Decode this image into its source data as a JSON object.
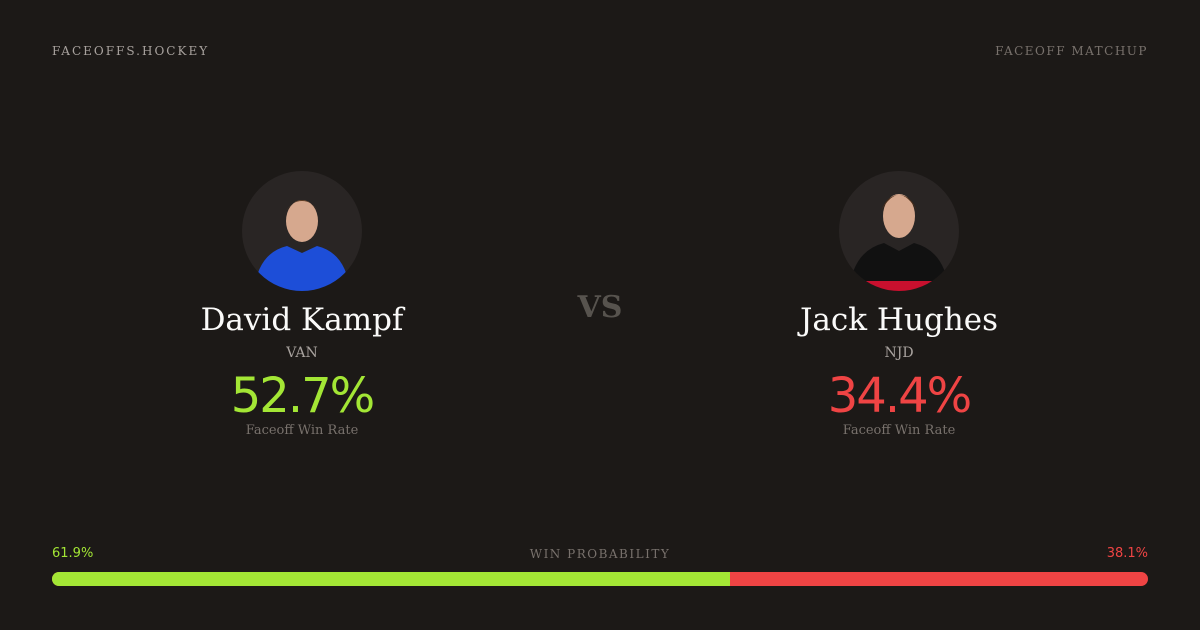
{
  "header": {
    "brand": "FACEOFFS.HOCKEY",
    "tag": "FACEOFF MATCHUP"
  },
  "vs": "VS",
  "players": [
    {
      "name": "David Kampf",
      "team": "VAN",
      "rate": "52.7%",
      "rate_label": "Faceoff Win Rate",
      "color": "#a3e635",
      "jersey": "#1d4ed8"
    },
    {
      "name": "Jack Hughes",
      "team": "NJD",
      "rate": "34.4%",
      "rate_label": "Faceoff Win Rate",
      "color": "#ef4444",
      "jersey": "#111111"
    }
  ],
  "win_probability": {
    "label": "WIN PROBABILITY",
    "left": "61.9%",
    "right": "38.1%",
    "left_fraction": 0.619,
    "left_color": "#a3e635",
    "right_color": "#ef4444"
  }
}
